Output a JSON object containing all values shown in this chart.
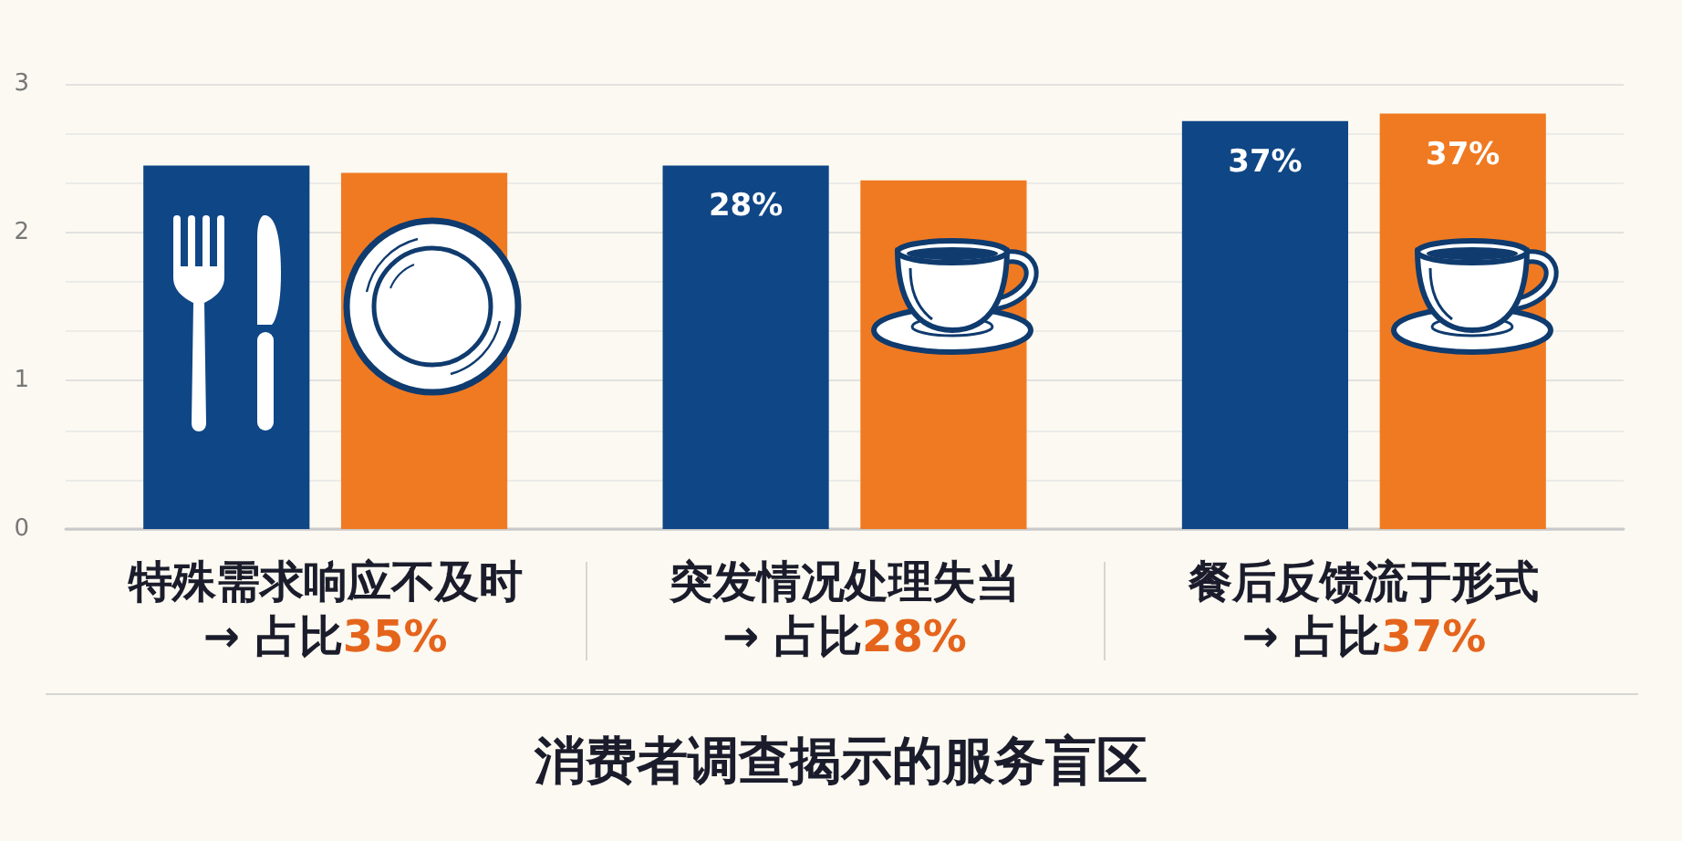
{
  "chart_data": {
    "type": "bar",
    "title": "消费者调查揭示的服务盲区",
    "categories": [
      "特殊需求响应不及时\n→ 占比35%",
      "突发情况处理失当\n→ 占比28%",
      "餐后反馈流于形式\n→ 占比37%"
    ],
    "series": [
      {
        "color": "#0f4686",
        "values": [
          2.45,
          2.45,
          2.75
        ]
      },
      {
        "color": "#f07a22",
        "values": [
          2.4,
          2.35,
          2.8
        ]
      }
    ],
    "annotations": [
      "28%",
      "37%",
      "37%"
    ],
    "ylim": [
      0,
      3
    ],
    "yticks": [
      0,
      1,
      2,
      3
    ],
    "grid": "y"
  }
}
